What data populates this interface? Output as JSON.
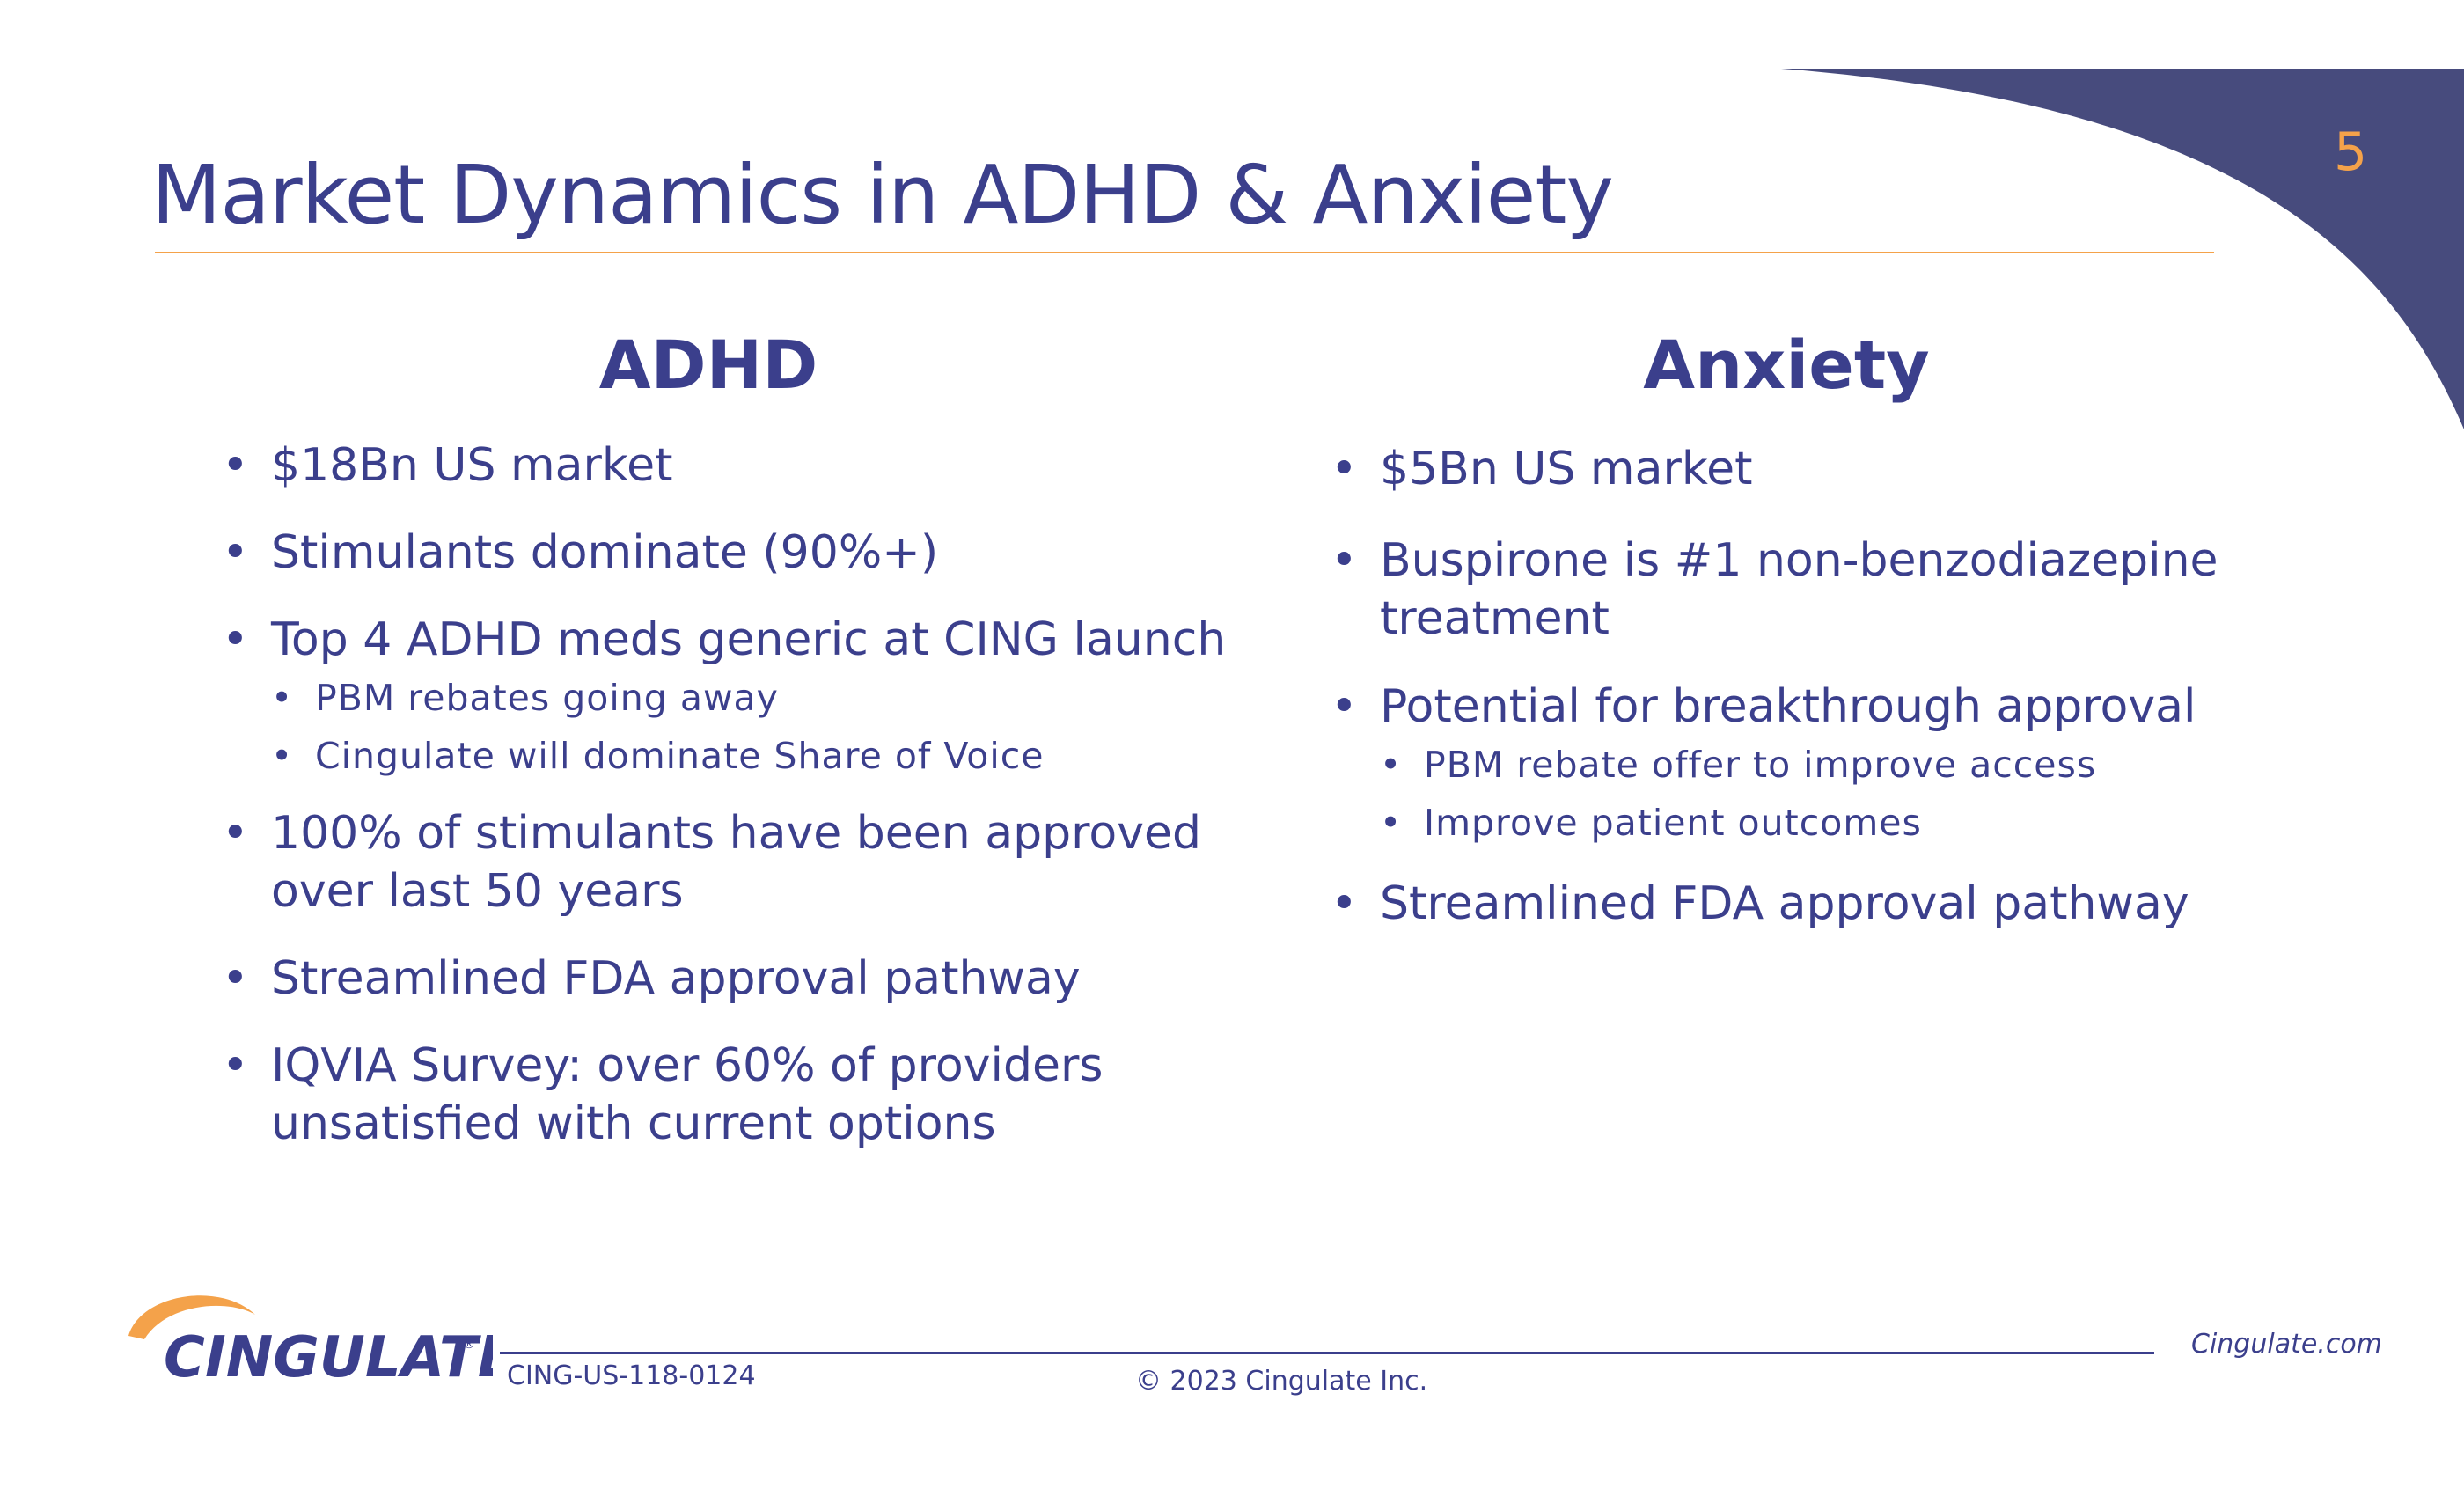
{
  "slide": {
    "page_number": "5",
    "title": "Market Dynamics in ADHD & Anxiety"
  },
  "colors": {
    "navy": "#3b3f8c",
    "swoosh": "#474b7d",
    "orange": "#f4a24a"
  },
  "adhd": {
    "heading": "ADHD",
    "bullets": [
      {
        "text": "$18Bn US market"
      },
      {
        "text": "Stimulants dominate (90%+)"
      },
      {
        "text": "Top 4 ADHD meds generic at CING launch",
        "sub": [
          "PBM rebates going away",
          "Cingulate will dominate Share of Voice"
        ]
      },
      {
        "text": "100% of stimulants have been approved over last 50 years"
      },
      {
        "text": "Streamlined FDA approval pathway"
      },
      {
        "text": "IQVIA Survey: over 60% of providers unsatisfied with current options"
      }
    ]
  },
  "anxiety": {
    "heading": "Anxiety",
    "bullets": [
      {
        "text": "$5Bn US market"
      },
      {
        "text": "Buspirone is #1 non-benzodiazepine treatment"
      },
      {
        "text": "Potential for breakthrough approval",
        "sub": [
          "PBM rebate offer to improve access",
          "Improve patient outcomes"
        ]
      },
      {
        "text": "Streamlined FDA approval pathway"
      }
    ]
  },
  "footer": {
    "logo_text": "CINGULATE",
    "doc_code": "CING-US-118-0124",
    "copyright": "© 2023 Cingulate Inc.",
    "website": "Cingulate.com"
  }
}
